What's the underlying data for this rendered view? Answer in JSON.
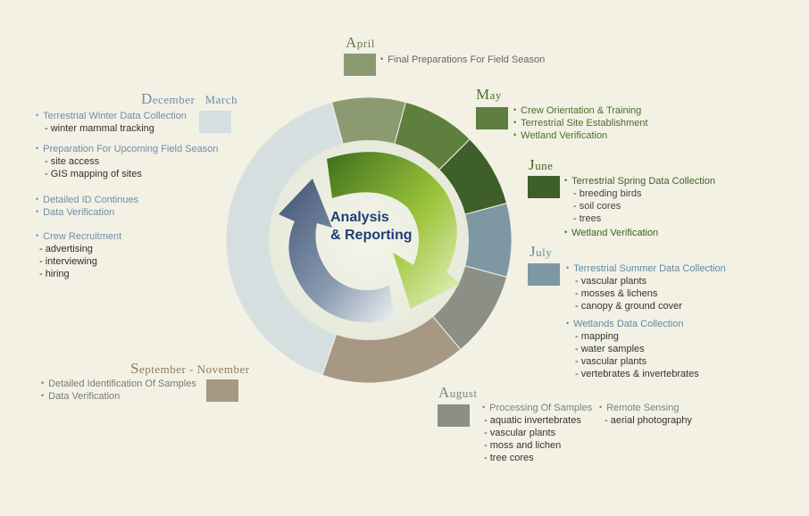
{
  "center": {
    "line1": "Analysis",
    "line2": "& Reporting"
  },
  "colors": {
    "dec_mar": "#d6dfe0",
    "april": "#8c9a72",
    "may": "#5f7f3f",
    "june": "#3e5e2a",
    "july": "#7d98a2",
    "august": "#8c8f86",
    "sep_nov": "#a79883",
    "background": "#f2f1e4"
  },
  "periods": {
    "dec_mar": {
      "label_start": "December",
      "label_end": "March",
      "groups": [
        {
          "items": [
            "Terrestrial Winter Data Collection"
          ],
          "subs": [
            "winter mammal tracking"
          ]
        },
        {
          "items": [
            "Preparation For Upcoming Field Season"
          ],
          "subs": [
            "site access",
            "GIS mapping of sites"
          ]
        },
        {
          "items": [
            "Detailed ID Continues",
            "Data Verification"
          ],
          "subs": []
        },
        {
          "items": [
            "Crew Recruitment"
          ],
          "subs": [
            "advertising",
            "interviewing",
            "hiring"
          ]
        }
      ]
    },
    "april": {
      "label": "April",
      "items": [
        "Final Preparations For Field Season"
      ]
    },
    "may": {
      "label": "May",
      "items": [
        "Crew Orientation & Training",
        "Terrestrial Site Establishment",
        "Wetland Verification"
      ]
    },
    "june": {
      "label": "June",
      "items": [
        "Terrestrial Spring Data Collection",
        "Wetland Verification"
      ],
      "subs": [
        "breeding birds",
        "soil cores",
        "trees"
      ]
    },
    "july": {
      "label": "July",
      "groups": [
        {
          "item": "Terrestrial Summer Data Collection",
          "subs": [
            "vascular plants",
            "mosses & lichens",
            "canopy & ground cover"
          ]
        },
        {
          "item": "Wetlands Data Collection",
          "subs": [
            "mapping",
            "water samples",
            "vascular plants",
            "vertebrates & invertebrates"
          ]
        }
      ]
    },
    "august": {
      "label": "August",
      "col1": {
        "item": "Processing Of Samples",
        "subs": [
          "aquatic invertebrates",
          "vascular plants",
          "moss and lichen",
          "tree cores"
        ]
      },
      "col2": {
        "item": "Remote Sensing",
        "subs": [
          "aerial photography"
        ]
      }
    },
    "sep_nov": {
      "label_start": "September",
      "label_end": "November",
      "items": [
        "Detailed Identification Of Samples",
        "Data Verification"
      ]
    }
  }
}
